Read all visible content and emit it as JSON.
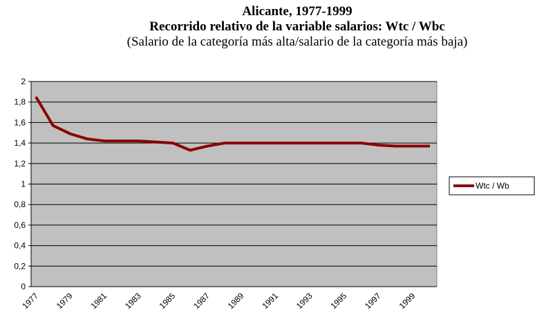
{
  "chart_data": {
    "type": "line",
    "title": "Alicante, 1977-1999",
    "subtitle": "Recorrido relativo de la variable salarios: Wtc / Wbc",
    "annotation": "(Salario de la categoría más alta/salario de la categoría más baja)",
    "categories": [
      "1977",
      null,
      "1979",
      null,
      "1981",
      null,
      "1983",
      null,
      "1985",
      null,
      "1987",
      null,
      "1989",
      null,
      "1991",
      null,
      "1993",
      null,
      "1995",
      null,
      "1997",
      null,
      "1999",
      null
    ],
    "series": [
      {
        "name": "Wtc / Wb",
        "color": "#8b0000",
        "values": [
          1.85,
          1.57,
          1.49,
          1.44,
          1.42,
          1.42,
          1.42,
          1.41,
          1.4,
          1.33,
          1.37,
          1.4,
          1.4,
          1.4,
          1.4,
          1.4,
          1.4,
          1.4,
          1.4,
          1.4,
          1.38,
          1.37,
          1.37,
          1.37
        ]
      }
    ],
    "ylim": [
      0,
      2
    ],
    "yticks": [
      0,
      {
        "value": 0.2,
        "label": "0,2"
      },
      {
        "value": 0.4,
        "label": "0,4"
      },
      {
        "value": 0.6,
        "label": "0,6"
      },
      {
        "value": 0.8,
        "label": "0,8"
      },
      1,
      {
        "value": 1.2,
        "label": "1,2"
      },
      {
        "value": 1.4,
        "label": "1,4"
      },
      {
        "value": 1.6,
        "label": "1,6"
      },
      {
        "value": 1.8,
        "label": "1,8"
      },
      2
    ],
    "grid": true,
    "legend": "right"
  }
}
